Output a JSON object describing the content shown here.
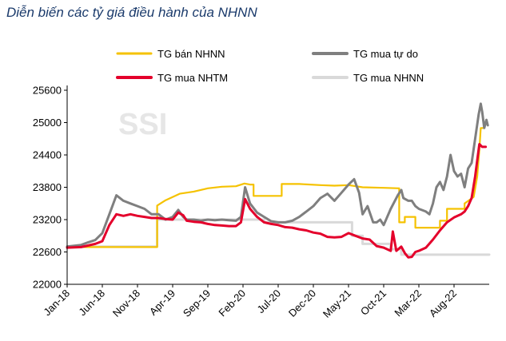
{
  "title": "Diễn biến các tỷ giá điều hành của NHNN",
  "watermark": "SSI",
  "chart_data": {
    "type": "line",
    "title": "Diễn biến các tỷ giá điều hành của NHNN",
    "ylim": [
      22000,
      25600
    ],
    "yticks": [
      22000,
      22600,
      23200,
      23800,
      24400,
      25000,
      25600
    ],
    "xlim": [
      0,
      60
    ],
    "xticks": [
      {
        "label": "Jan-18",
        "x": 0
      },
      {
        "label": "Jun-18",
        "x": 5
      },
      {
        "label": "Nov-18",
        "x": 10
      },
      {
        "label": "Apr-19",
        "x": 15
      },
      {
        "label": "Sep-19",
        "x": 20
      },
      {
        "label": "Feb-20",
        "x": 25
      },
      {
        "label": "Jul-20",
        "x": 30
      },
      {
        "label": "Dec-20",
        "x": 35
      },
      {
        "label": "May-21",
        "x": 40
      },
      {
        "label": "Oct-21",
        "x": 45
      },
      {
        "label": "Mar-22",
        "x": 50
      },
      {
        "label": "Aug-22",
        "x": 55
      }
    ],
    "series": [
      {
        "name": "TG bán NHNN",
        "color": "#f5c200",
        "width": 2.2,
        "points": [
          [
            0,
            22690
          ],
          [
            12.8,
            22690
          ],
          [
            12.8,
            23460
          ],
          [
            14,
            23560
          ],
          [
            16,
            23680
          ],
          [
            18,
            23720
          ],
          [
            20,
            23780
          ],
          [
            22,
            23810
          ],
          [
            24,
            23820
          ],
          [
            25.2,
            23870
          ],
          [
            26,
            23850
          ],
          [
            26.5,
            23850
          ],
          [
            26.5,
            23640
          ],
          [
            30.5,
            23640
          ],
          [
            30.5,
            23860
          ],
          [
            33,
            23860
          ],
          [
            36,
            23840
          ],
          [
            38,
            23830
          ],
          [
            40,
            23840
          ],
          [
            42,
            23800
          ],
          [
            45,
            23790
          ],
          [
            47.2,
            23780
          ],
          [
            47.2,
            23150
          ],
          [
            48,
            23150
          ],
          [
            48,
            23250
          ],
          [
            49.5,
            23250
          ],
          [
            49.5,
            23050
          ],
          [
            53,
            23050
          ],
          [
            53,
            23180
          ],
          [
            54,
            23180
          ],
          [
            54,
            23400
          ],
          [
            56.5,
            23400
          ],
          [
            56.5,
            23500
          ],
          [
            57.8,
            23620
          ],
          [
            58.3,
            24000
          ],
          [
            58.6,
            24500
          ],
          [
            58.8,
            24900
          ],
          [
            59.2,
            24900
          ]
        ]
      },
      {
        "name": "TG mua tự do",
        "color": "#7f7f7f",
        "width": 3,
        "points": [
          [
            0,
            22700
          ],
          [
            2,
            22730
          ],
          [
            3,
            22780
          ],
          [
            4,
            22820
          ],
          [
            5,
            22950
          ],
          [
            6,
            23300
          ],
          [
            7,
            23650
          ],
          [
            8,
            23550
          ],
          [
            9,
            23500
          ],
          [
            10,
            23450
          ],
          [
            11,
            23400
          ],
          [
            12,
            23300
          ],
          [
            13,
            23300
          ],
          [
            14,
            23200
          ],
          [
            15,
            23250
          ],
          [
            15.8,
            23380
          ],
          [
            16.5,
            23250
          ],
          [
            17,
            23200
          ],
          [
            18,
            23200
          ],
          [
            19,
            23180
          ],
          [
            20,
            23200
          ],
          [
            21,
            23190
          ],
          [
            22,
            23200
          ],
          [
            23,
            23190
          ],
          [
            24,
            23180
          ],
          [
            24.7,
            23250
          ],
          [
            25.3,
            23800
          ],
          [
            26,
            23500
          ],
          [
            27,
            23330
          ],
          [
            28,
            23250
          ],
          [
            29,
            23170
          ],
          [
            30,
            23150
          ],
          [
            31,
            23150
          ],
          [
            32,
            23180
          ],
          [
            33,
            23250
          ],
          [
            34,
            23350
          ],
          [
            35,
            23450
          ],
          [
            36,
            23600
          ],
          [
            37,
            23680
          ],
          [
            38,
            23550
          ],
          [
            39,
            23700
          ],
          [
            40,
            23850
          ],
          [
            40.8,
            23950
          ],
          [
            41.5,
            23700
          ],
          [
            42,
            23300
          ],
          [
            42.7,
            23450
          ],
          [
            43.5,
            23150
          ],
          [
            44,
            23150
          ],
          [
            44.5,
            23200
          ],
          [
            45,
            23100
          ],
          [
            46,
            23400
          ],
          [
            47,
            23650
          ],
          [
            47.5,
            23750
          ],
          [
            47.8,
            23600
          ],
          [
            48.5,
            23550
          ],
          [
            49,
            23550
          ],
          [
            49.5,
            23450
          ],
          [
            50,
            23400
          ],
          [
            51,
            23350
          ],
          [
            51.5,
            23300
          ],
          [
            52,
            23500
          ],
          [
            52.5,
            23800
          ],
          [
            53,
            23900
          ],
          [
            53.5,
            23750
          ],
          [
            54,
            24000
          ],
          [
            54.5,
            24400
          ],
          [
            55,
            24100
          ],
          [
            55.5,
            24000
          ],
          [
            56,
            24050
          ],
          [
            56.5,
            23800
          ],
          [
            57,
            24150
          ],
          [
            57.5,
            24250
          ],
          [
            58,
            24700
          ],
          [
            58.5,
            25150
          ],
          [
            58.8,
            25350
          ],
          [
            59,
            25200
          ],
          [
            59.3,
            24900
          ],
          [
            59.6,
            25050
          ],
          [
            59.8,
            24950
          ]
        ]
      },
      {
        "name": "TG mua NHTM",
        "color": "#e4002b",
        "width": 3,
        "points": [
          [
            0,
            22680
          ],
          [
            2,
            22690
          ],
          [
            3,
            22720
          ],
          [
            4,
            22750
          ],
          [
            5,
            22800
          ],
          [
            6,
            23100
          ],
          [
            7,
            23300
          ],
          [
            8,
            23270
          ],
          [
            9,
            23300
          ],
          [
            10,
            23270
          ],
          [
            11,
            23250
          ],
          [
            12,
            23230
          ],
          [
            13,
            23230
          ],
          [
            14,
            23210
          ],
          [
            15,
            23200
          ],
          [
            15.8,
            23330
          ],
          [
            16.5,
            23280
          ],
          [
            17,
            23180
          ],
          [
            18,
            23160
          ],
          [
            19,
            23150
          ],
          [
            20,
            23120
          ],
          [
            21,
            23100
          ],
          [
            22,
            23090
          ],
          [
            23,
            23080
          ],
          [
            24,
            23080
          ],
          [
            24.7,
            23150
          ],
          [
            25.3,
            23580
          ],
          [
            26,
            23400
          ],
          [
            27,
            23250
          ],
          [
            28,
            23150
          ],
          [
            29,
            23120
          ],
          [
            30,
            23100
          ],
          [
            31,
            23060
          ],
          [
            32,
            23050
          ],
          [
            33,
            23020
          ],
          [
            34,
            23000
          ],
          [
            35,
            22960
          ],
          [
            36,
            22940
          ],
          [
            37,
            22880
          ],
          [
            38,
            22870
          ],
          [
            39,
            22880
          ],
          [
            40,
            22950
          ],
          [
            41,
            22900
          ],
          [
            42,
            22850
          ],
          [
            43,
            22830
          ],
          [
            44,
            22710
          ],
          [
            45,
            22680
          ],
          [
            46,
            22620
          ],
          [
            46.3,
            22980
          ],
          [
            46.8,
            22620
          ],
          [
            47.5,
            22700
          ],
          [
            48,
            22580
          ],
          [
            48.5,
            22500
          ],
          [
            49,
            22510
          ],
          [
            49.5,
            22600
          ],
          [
            50,
            22620
          ],
          [
            51,
            22680
          ],
          [
            52,
            22830
          ],
          [
            53,
            23000
          ],
          [
            54,
            23150
          ],
          [
            55,
            23240
          ],
          [
            56,
            23300
          ],
          [
            56.5,
            23350
          ],
          [
            57,
            23450
          ],
          [
            57.5,
            23600
          ],
          [
            58,
            24000
          ],
          [
            58.3,
            24300
          ],
          [
            58.6,
            24600
          ],
          [
            59,
            24550
          ],
          [
            59.5,
            24550
          ]
        ]
      },
      {
        "name": "TG mua NHNN",
        "color": "#d9d9d9",
        "width": 3,
        "points": [
          [
            0,
            22700
          ],
          [
            12.8,
            22700
          ],
          [
            12.8,
            23200
          ],
          [
            28,
            23200
          ],
          [
            28,
            23150
          ],
          [
            40.5,
            23150
          ],
          [
            40.5,
            22900
          ],
          [
            42,
            22900
          ],
          [
            42,
            22750
          ],
          [
            46,
            22750
          ],
          [
            46,
            22650
          ],
          [
            47.5,
            22650
          ],
          [
            47.5,
            22550
          ],
          [
            60,
            22550
          ]
        ]
      }
    ],
    "legend": [
      {
        "label": "TG bán NHNN",
        "color": "#f5c200",
        "width": 3
      },
      {
        "label": "TG mua tự do",
        "color": "#7f7f7f",
        "width": 4
      },
      {
        "label": "TG mua NHTM",
        "color": "#e4002b",
        "width": 4
      },
      {
        "label": "TG mua NHNN",
        "color": "#d9d9d9",
        "width": 4
      }
    ]
  }
}
